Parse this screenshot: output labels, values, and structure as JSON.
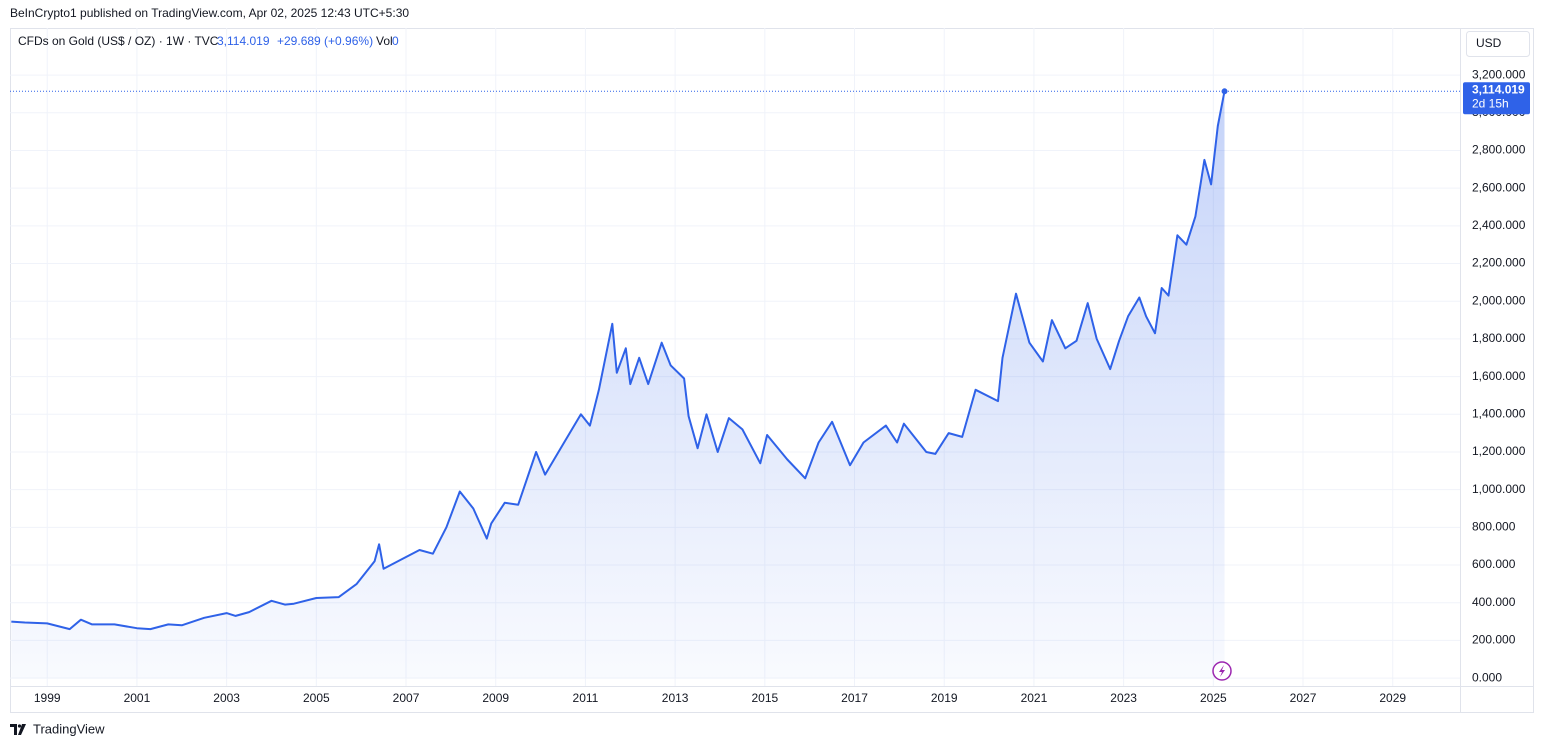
{
  "header": {
    "publisher": "BeInCrypto1 published on TradingView.com, Apr 02, 2025 12:43 UTC+5:30",
    "footer": "TradingView"
  },
  "chart_data": {
    "type": "area",
    "symbol": "CFDs on Gold (US$ / OZ) · 1W · TVC",
    "price": "3,114.019",
    "change": "+29.689 (+0.96%)",
    "volume_label": "Vol",
    "volume": 0,
    "currency": "USD",
    "last_label": "3,114.019",
    "countdown": "2d 15h",
    "color": "#2f62e8",
    "x": [
      1998.2,
      1998.5,
      1999.0,
      1999.5,
      1999.75,
      2000.0,
      2000.5,
      2001.0,
      2001.3,
      2001.7,
      2002.0,
      2002.5,
      2003.0,
      2003.2,
      2003.5,
      2004.0,
      2004.3,
      2004.5,
      2005.0,
      2005.5,
      2005.9,
      2006.3,
      2006.4,
      2006.5,
      2006.9,
      2007.3,
      2007.6,
      2007.9,
      2008.2,
      2008.5,
      2008.8,
      2008.9,
      2009.2,
      2009.5,
      2009.9,
      2010.1,
      2010.5,
      2010.9,
      2011.1,
      2011.3,
      2011.6,
      2011.7,
      2011.9,
      2012.0,
      2012.2,
      2012.4,
      2012.7,
      2012.9,
      2013.2,
      2013.3,
      2013.5,
      2013.7,
      2013.95,
      2014.2,
      2014.5,
      2014.9,
      2015.05,
      2015.5,
      2015.9,
      2016.2,
      2016.5,
      2016.9,
      2017.2,
      2017.7,
      2017.95,
      2018.1,
      2018.6,
      2018.8,
      2019.1,
      2019.4,
      2019.7,
      2020.2,
      2020.3,
      2020.6,
      2020.9,
      2021.2,
      2021.4,
      2021.7,
      2021.95,
      2022.2,
      2022.4,
      2022.7,
      2022.9,
      2023.1,
      2023.35,
      2023.5,
      2023.7,
      2023.85,
      2024.0,
      2024.2,
      2024.4,
      2024.6,
      2024.8,
      2024.95,
      2025.1,
      2025.25
    ],
    "values": [
      300,
      295,
      290,
      260,
      310,
      285,
      285,
      265,
      260,
      285,
      280,
      320,
      345,
      330,
      350,
      410,
      390,
      395,
      425,
      430,
      500,
      620,
      710,
      580,
      630,
      680,
      660,
      800,
      990,
      900,
      740,
      820,
      930,
      920,
      1200,
      1080,
      1240,
      1400,
      1340,
      1530,
      1880,
      1620,
      1750,
      1560,
      1700,
      1560,
      1780,
      1660,
      1590,
      1390,
      1220,
      1400,
      1200,
      1380,
      1320,
      1140,
      1290,
      1160,
      1060,
      1250,
      1360,
      1130,
      1250,
      1340,
      1250,
      1350,
      1200,
      1190,
      1300,
      1280,
      1530,
      1470,
      1700,
      2040,
      1780,
      1680,
      1900,
      1750,
      1790,
      1990,
      1800,
      1640,
      1790,
      1920,
      2020,
      1920,
      1830,
      2070,
      2030,
      2350,
      2300,
      2450,
      2750,
      2620,
      2930,
      3114.019
    ],
    "xlim": [
      1998.17,
      2030.5
    ],
    "xticks": [
      1999,
      2001,
      2003,
      2005,
      2007,
      2009,
      2011,
      2013,
      2015,
      2017,
      2019,
      2021,
      2023,
      2025,
      2027,
      2029
    ],
    "ylim": [
      -42,
      3450
    ],
    "yticks": [
      {
        "value": 0,
        "label": "0.000"
      },
      {
        "value": 200,
        "label": "200.000"
      },
      {
        "value": 400,
        "label": "400.000"
      },
      {
        "value": 600,
        "label": "600.000"
      },
      {
        "value": 800,
        "label": "800.000"
      },
      {
        "value": 1000,
        "label": "1,000.000"
      },
      {
        "value": 1200,
        "label": "1,200.000"
      },
      {
        "value": 1400,
        "label": "1,400.000"
      },
      {
        "value": 1600,
        "label": "1,600.000"
      },
      {
        "value": 1800,
        "label": "1,800.000"
      },
      {
        "value": 2000,
        "label": "2,000.000"
      },
      {
        "value": 2200,
        "label": "2,200.000"
      },
      {
        "value": 2400,
        "label": "2,400.000"
      },
      {
        "value": 2600,
        "label": "2,600.000"
      },
      {
        "value": 2800,
        "label": "2,800.000"
      },
      {
        "value": 3000,
        "label": "3,000.000"
      },
      {
        "value": 3200,
        "label": "3,200.000"
      }
    ],
    "grid": true
  }
}
